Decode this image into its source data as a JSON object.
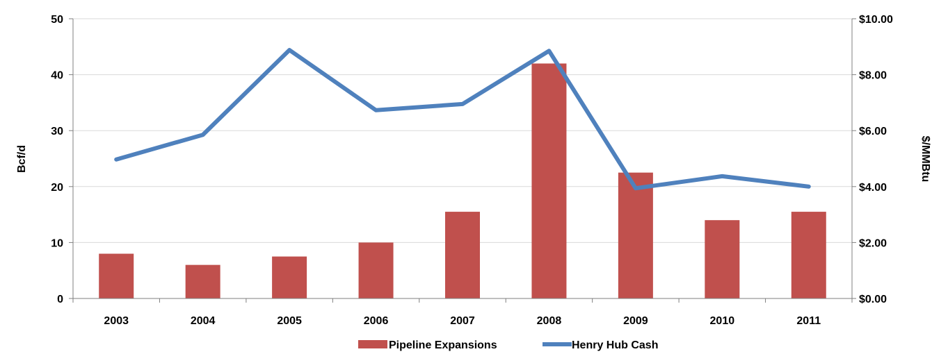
{
  "chart_data": {
    "type": "bar",
    "categories": [
      "2003",
      "2004",
      "2005",
      "2006",
      "2007",
      "2008",
      "2009",
      "2010",
      "2011"
    ],
    "series": [
      {
        "name": "Pipeline Expansions",
        "type": "bar",
        "axis": "left",
        "color": "#c0504d",
        "values": [
          8,
          6,
          7.5,
          10,
          15.5,
          42,
          22.5,
          14,
          15.5
        ]
      },
      {
        "name": "Henry Hub Cash",
        "type": "line",
        "axis": "right",
        "color": "#4f81bd",
        "values": [
          4.97,
          5.85,
          8.88,
          6.73,
          6.95,
          8.85,
          3.94,
          4.37,
          4.0
        ]
      }
    ],
    "ylabel": "Bcf/d",
    "y2label": "$/MMBtu",
    "ylim": [
      0,
      50
    ],
    "y2lim": [
      0,
      10
    ],
    "yticks": [
      "0",
      "10",
      "20",
      "30",
      "40",
      "50"
    ],
    "y2ticks": [
      "$0.00",
      "$2.00",
      "$4.00",
      "$6.00",
      "$8.00",
      "$10.00"
    ],
    "grid": true,
    "legend": "bottom-center"
  }
}
